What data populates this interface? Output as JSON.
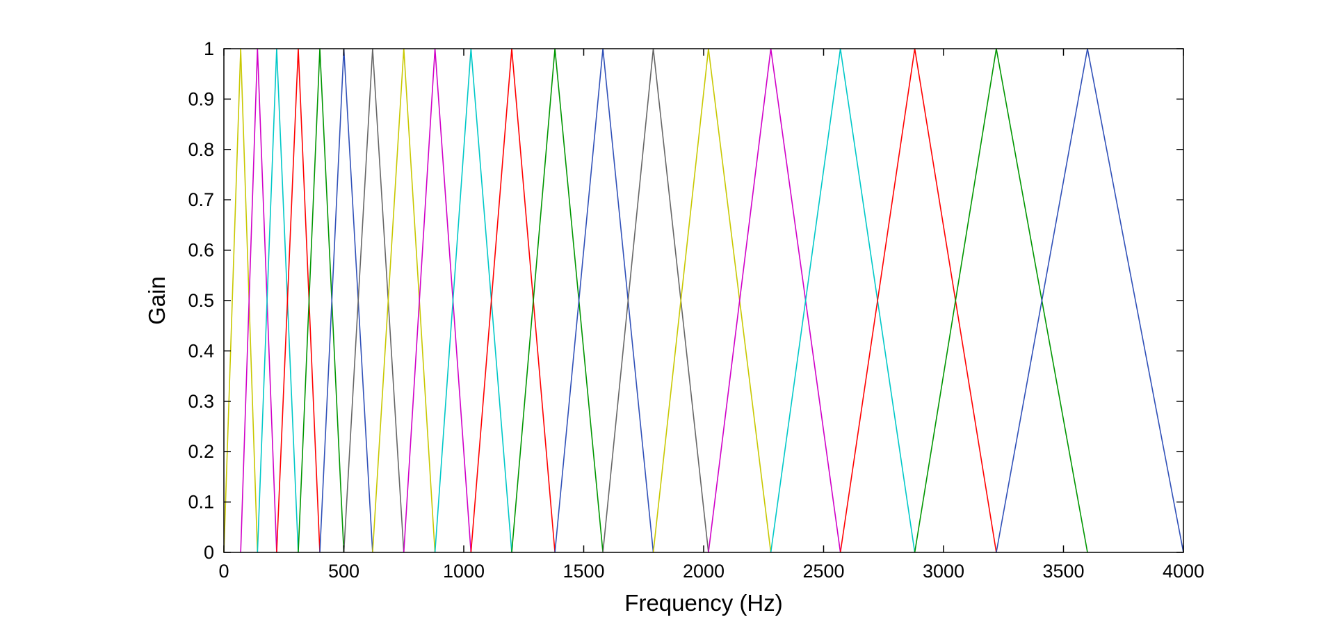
{
  "chart_data": {
    "type": "line",
    "title": "",
    "xlabel": "Frequency (Hz)",
    "ylabel": "Gain",
    "xlim": [
      0,
      4000
    ],
    "ylim": [
      0,
      1
    ],
    "grid": false,
    "x_ticks": [
      "0",
      "500",
      "1000",
      "1500",
      "2000",
      "2500",
      "3000",
      "3500",
      "4000"
    ],
    "y_ticks": [
      "0",
      "0.1",
      "0.2",
      "0.3",
      "0.4",
      "0.5",
      "0.6",
      "0.7",
      "0.8",
      "0.9",
      "1"
    ],
    "series": [
      {
        "color": "#c8c800",
        "x": [
          0,
          70,
          140
        ],
        "y": [
          0,
          1,
          0
        ]
      },
      {
        "color": "#d000c8",
        "x": [
          70,
          140,
          220
        ],
        "y": [
          0,
          1,
          0
        ]
      },
      {
        "color": "#00c8c8",
        "x": [
          140,
          220,
          310
        ],
        "y": [
          0,
          1,
          0
        ]
      },
      {
        "color": "#ff0000",
        "x": [
          220,
          310,
          400
        ],
        "y": [
          0,
          1,
          0
        ]
      },
      {
        "color": "#009600",
        "x": [
          310,
          400,
          500
        ],
        "y": [
          0,
          1,
          0
        ]
      },
      {
        "color": "#3050b8",
        "x": [
          400,
          500,
          620
        ],
        "y": [
          0,
          1,
          0
        ]
      },
      {
        "color": "#666666",
        "x": [
          500,
          620,
          750
        ],
        "y": [
          0,
          1,
          0
        ]
      },
      {
        "color": "#c8c800",
        "x": [
          620,
          750,
          880
        ],
        "y": [
          0,
          1,
          0
        ]
      },
      {
        "color": "#d000c8",
        "x": [
          750,
          880,
          1030
        ],
        "y": [
          0,
          1,
          0
        ]
      },
      {
        "color": "#00c8c8",
        "x": [
          880,
          1030,
          1200
        ],
        "y": [
          0,
          1,
          0
        ]
      },
      {
        "color": "#ff0000",
        "x": [
          1030,
          1200,
          1380
        ],
        "y": [
          0,
          1,
          0
        ]
      },
      {
        "color": "#009600",
        "x": [
          1200,
          1380,
          1580
        ],
        "y": [
          0,
          1,
          0
        ]
      },
      {
        "color": "#3050b8",
        "x": [
          1380,
          1580,
          1790
        ],
        "y": [
          0,
          1,
          0
        ]
      },
      {
        "color": "#666666",
        "x": [
          1580,
          1790,
          2020
        ],
        "y": [
          0,
          1,
          0
        ]
      },
      {
        "color": "#c8c800",
        "x": [
          1790,
          2020,
          2280
        ],
        "y": [
          0,
          1,
          0
        ]
      },
      {
        "color": "#d000c8",
        "x": [
          2020,
          2280,
          2570
        ],
        "y": [
          0,
          1,
          0
        ]
      },
      {
        "color": "#00c8c8",
        "x": [
          2280,
          2570,
          2880
        ],
        "y": [
          0,
          1,
          0
        ]
      },
      {
        "color": "#ff0000",
        "x": [
          2570,
          2880,
          3220
        ],
        "y": [
          0,
          1,
          0
        ]
      },
      {
        "color": "#009600",
        "x": [
          2880,
          3220,
          3600
        ],
        "y": [
          0,
          1,
          0
        ]
      },
      {
        "color": "#3050b8",
        "x": [
          3220,
          3600,
          4000
        ],
        "y": [
          0,
          1,
          0
        ]
      }
    ]
  }
}
